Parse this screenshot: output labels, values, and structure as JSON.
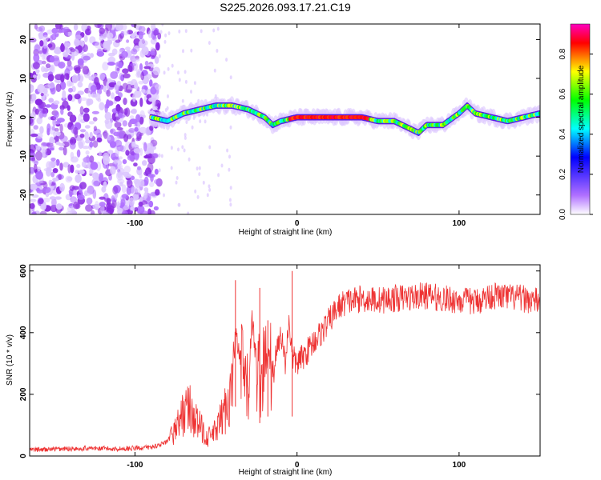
{
  "title": "S225.2026.093.17.21.C19",
  "chart_data": [
    {
      "type": "heatmap",
      "xlabel": "Height of straight line (km)",
      "ylabel": "Frequency (Hz)",
      "xlim": [
        -165,
        150
      ],
      "ylim": [
        -25,
        24
      ],
      "xticks": [
        -100,
        0,
        100
      ],
      "yticks": [
        -20,
        -10,
        0,
        10,
        20
      ],
      "colorbar": {
        "label": "Normalized spectral amplitude",
        "range": [
          0,
          0.95
        ],
        "ticks": [
          "0.0",
          "0.2",
          "0.4",
          "0.6",
          "0.8"
        ],
        "colormap": [
          "#ffffff",
          "#b070ff",
          "#0000ff",
          "#00ffff",
          "#00ff00",
          "#ffff00",
          "#ff0000",
          "#ff00c0"
        ]
      },
      "noise_region_x": [
        -165,
        -85
      ],
      "carrier_trace": {
        "x": [
          -90,
          -80,
          -70,
          -60,
          -50,
          -40,
          -30,
          -20,
          -15,
          -10,
          0,
          10,
          20,
          30,
          40,
          50,
          60,
          70,
          75,
          80,
          90,
          100,
          105,
          110,
          120,
          130,
          140,
          150
        ],
        "y": [
          0,
          -1,
          1,
          2,
          3,
          3,
          2,
          0,
          -2,
          -1,
          0,
          0,
          0,
          0,
          0,
          -1,
          -1,
          -3,
          -4,
          -2,
          -2,
          1,
          3,
          1,
          0,
          -1,
          0,
          1
        ]
      },
      "peak_segment_x": [
        -5,
        45
      ]
    },
    {
      "type": "line",
      "xlabel": "Height of straight line (km)",
      "ylabel": "SNR (10 * v/v)",
      "xlim": [
        -165,
        150
      ],
      "ylim": [
        0,
        620
      ],
      "xticks": [
        -100,
        0,
        100
      ],
      "yticks": [
        0,
        200,
        400,
        600
      ],
      "color": "#ee3333",
      "series": [
        {
          "x": [
            -165,
            -150,
            -130,
            -110,
            -90,
            -80,
            -75,
            -70,
            -67,
            -62,
            -55,
            -50,
            -45,
            -40,
            -38,
            -35,
            -30,
            -28,
            -25,
            -22,
            -18,
            -15,
            -12,
            -10,
            -7,
            -5,
            -3,
            0,
            5,
            10,
            15,
            20,
            25,
            30,
            40,
            50,
            60,
            70,
            80,
            90,
            100,
            110,
            120,
            130,
            140,
            150
          ],
          "y": [
            20,
            22,
            25,
            23,
            28,
            45,
            90,
            140,
            160,
            110,
            60,
            80,
            140,
            220,
            400,
            300,
            200,
            450,
            300,
            250,
            320,
            280,
            350,
            400,
            300,
            450,
            320,
            300,
            330,
            370,
            400,
            440,
            480,
            500,
            510,
            505,
            510,
            515,
            520,
            510,
            505,
            500,
            520,
            515,
            510,
            500
          ]
        }
      ],
      "spikes": [
        {
          "x": -38,
          "y": 570
        },
        {
          "x": -23,
          "y": 545
        },
        {
          "x": -3,
          "y": 600
        },
        {
          "x": -18,
          "y": 440
        }
      ]
    }
  ]
}
